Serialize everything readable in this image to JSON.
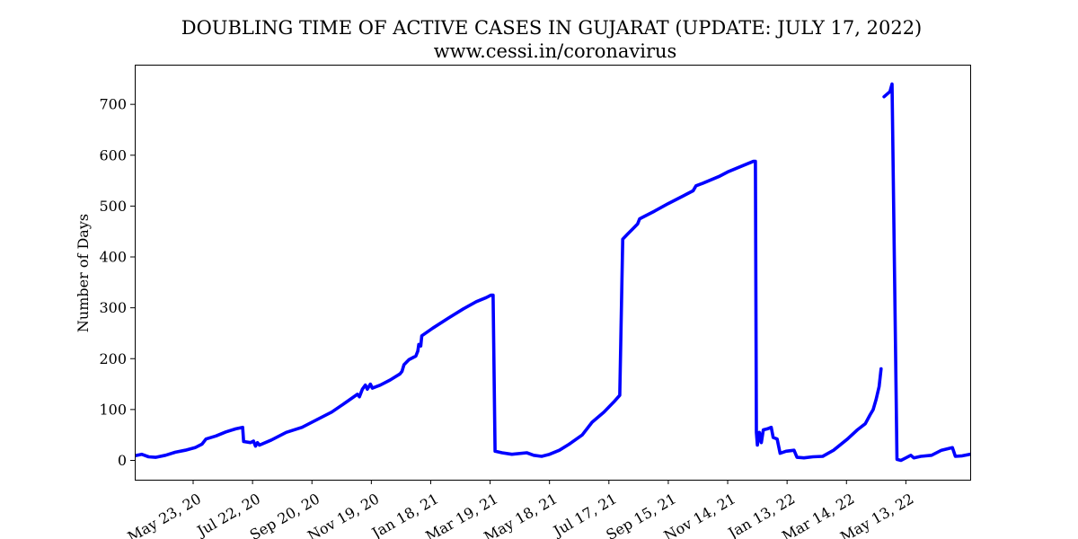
{
  "chart_data": {
    "type": "line",
    "title": "DOUBLING TIME OF ACTIVE CASES IN GUJARAT (UPDATE: JULY 17, 2022)",
    "subtitle": "www.cessi.in/coronavirus",
    "xlabel": "",
    "ylabel": "Number of Days",
    "x_axis": "date",
    "xlim": [
      "2020-03-25",
      "2022-07-17"
    ],
    "ylim": [
      -38,
      778
    ],
    "y_ticks": [
      0,
      100,
      200,
      300,
      400,
      500,
      600,
      700
    ],
    "x_ticks": [
      {
        "date": "2020-05-23",
        "label": "May 23, 20"
      },
      {
        "date": "2020-07-22",
        "label": "Jul 22, 20"
      },
      {
        "date": "2020-09-20",
        "label": "Sep 20, 20"
      },
      {
        "date": "2020-11-19",
        "label": "Nov 19, 20"
      },
      {
        "date": "2021-01-18",
        "label": "Jan 18, 21"
      },
      {
        "date": "2021-03-19",
        "label": "Mar 19, 21"
      },
      {
        "date": "2021-05-18",
        "label": "May 18, 21"
      },
      {
        "date": "2021-07-17",
        "label": "Jul 17, 21"
      },
      {
        "date": "2021-09-15",
        "label": "Sep 15, 21"
      },
      {
        "date": "2021-11-14",
        "label": "Nov 14, 21"
      },
      {
        "date": "2022-01-13",
        "label": "Jan 13, 22"
      },
      {
        "date": "2022-03-14",
        "label": "Mar 14, 22"
      },
      {
        "date": "2022-05-13",
        "label": "May 13, 22"
      }
    ],
    "grid": false,
    "legend": "none",
    "series": [
      {
        "color": "#0000ff",
        "segments": [
          [
            [
              "2020-03-25",
              9
            ],
            [
              "2020-04-01",
              12
            ],
            [
              "2020-04-08",
              7
            ],
            [
              "2020-04-15",
              6
            ],
            [
              "2020-04-25",
              10
            ],
            [
              "2020-05-05",
              16
            ],
            [
              "2020-05-15",
              20
            ],
            [
              "2020-05-25",
              25
            ],
            [
              "2020-06-01",
              32
            ],
            [
              "2020-06-05",
              42
            ],
            [
              "2020-06-15",
              48
            ],
            [
              "2020-06-25",
              56
            ],
            [
              "2020-07-05",
              62
            ],
            [
              "2020-07-12",
              65
            ],
            [
              "2020-07-13",
              37
            ],
            [
              "2020-07-20",
              35
            ],
            [
              "2020-07-23",
              38
            ],
            [
              "2020-07-25",
              28
            ],
            [
              "2020-07-27",
              35
            ],
            [
              "2020-07-29",
              30
            ],
            [
              "2020-08-10",
              40
            ],
            [
              "2020-08-25",
              55
            ],
            [
              "2020-09-10",
              65
            ],
            [
              "2020-09-25",
              80
            ],
            [
              "2020-10-10",
              95
            ],
            [
              "2020-10-25",
              115
            ],
            [
              "2020-11-05",
              130
            ],
            [
              "2020-11-07",
              125
            ],
            [
              "2020-11-10",
              140
            ],
            [
              "2020-11-13",
              148
            ],
            [
              "2020-11-15",
              140
            ],
            [
              "2020-11-18",
              150
            ],
            [
              "2020-11-20",
              142
            ],
            [
              "2020-11-28",
              148
            ],
            [
              "2020-12-08",
              158
            ],
            [
              "2020-12-18",
              170
            ],
            [
              "2020-12-20",
              175
            ],
            [
              "2020-12-22",
              188
            ],
            [
              "2020-12-27",
              198
            ],
            [
              "2021-01-03",
              205
            ],
            [
              "2021-01-05",
              215
            ],
            [
              "2021-01-06",
              228
            ],
            [
              "2021-01-08",
              225
            ],
            [
              "2021-01-09",
              245
            ],
            [
              "2021-01-20",
              260
            ],
            [
              "2021-02-05",
              280
            ],
            [
              "2021-02-20",
              298
            ],
            [
              "2021-03-05",
              312
            ],
            [
              "2021-03-15",
              320
            ],
            [
              "2021-03-20",
              325
            ],
            [
              "2021-03-22",
              325
            ],
            [
              "2021-03-24",
              18
            ],
            [
              "2021-03-31",
              15
            ],
            [
              "2021-04-10",
              12
            ],
            [
              "2021-04-25",
              15
            ],
            [
              "2021-05-02",
              10
            ],
            [
              "2021-05-10",
              8
            ],
            [
              "2021-05-18",
              12
            ],
            [
              "2021-05-28",
              20
            ],
            [
              "2021-06-07",
              32
            ],
            [
              "2021-06-20",
              50
            ],
            [
              "2021-06-30",
              75
            ],
            [
              "2021-07-12",
              95
            ],
            [
              "2021-07-22",
              115
            ],
            [
              "2021-07-28",
              128
            ],
            [
              "2021-07-31",
              435
            ],
            [
              "2021-08-05",
              445
            ],
            [
              "2021-08-10",
              455
            ],
            [
              "2021-08-15",
              465
            ],
            [
              "2021-08-17",
              475
            ],
            [
              "2021-08-20",
              478
            ],
            [
              "2021-09-01",
              490
            ],
            [
              "2021-09-15",
              505
            ],
            [
              "2021-09-30",
              520
            ],
            [
              "2021-10-10",
              530
            ],
            [
              "2021-10-13",
              540
            ],
            [
              "2021-10-20",
              545
            ],
            [
              "2021-11-05",
              558
            ],
            [
              "2021-11-15",
              568
            ],
            [
              "2021-11-30",
              580
            ],
            [
              "2021-12-10",
              588
            ],
            [
              "2021-12-12",
              588
            ],
            [
              "2021-12-13",
              55
            ],
            [
              "2021-12-14",
              30
            ],
            [
              "2021-12-16",
              55
            ],
            [
              "2021-12-18",
              35
            ],
            [
              "2021-12-20",
              60
            ],
            [
              "2021-12-24",
              62
            ],
            [
              "2021-12-28",
              65
            ],
            [
              "2021-12-30",
              45
            ],
            [
              "2022-01-03",
              42
            ],
            [
              "2022-01-06",
              14
            ],
            [
              "2022-01-12",
              18
            ],
            [
              "2022-01-20",
              20
            ],
            [
              "2022-01-23",
              6
            ],
            [
              "2022-01-30",
              5
            ],
            [
              "2022-02-08",
              7
            ],
            [
              "2022-02-18",
              8
            ],
            [
              "2022-03-01",
              20
            ],
            [
              "2022-03-15",
              42
            ],
            [
              "2022-03-25",
              60
            ],
            [
              "2022-04-02",
              72
            ],
            [
              "2022-04-07",
              90
            ],
            [
              "2022-04-10",
              100
            ],
            [
              "2022-04-13",
              120
            ],
            [
              "2022-04-16",
              145
            ],
            [
              "2022-04-18",
              180
            ]
          ],
          [
            [
              "2022-04-21",
              715
            ],
            [
              "2022-04-24",
              720
            ],
            [
              "2022-04-27",
              725
            ],
            [
              "2022-04-29",
              740
            ],
            [
              "2022-05-04",
              2
            ],
            [
              "2022-05-08",
              0
            ],
            [
              "2022-05-13",
              5
            ],
            [
              "2022-05-18",
              10
            ],
            [
              "2022-05-21",
              5
            ],
            [
              "2022-05-28",
              8
            ],
            [
              "2022-06-08",
              10
            ],
            [
              "2022-06-18",
              20
            ],
            [
              "2022-06-29",
              25
            ],
            [
              "2022-07-02",
              8
            ],
            [
              "2022-07-09",
              9
            ],
            [
              "2022-07-17",
              12
            ]
          ]
        ]
      }
    ]
  }
}
